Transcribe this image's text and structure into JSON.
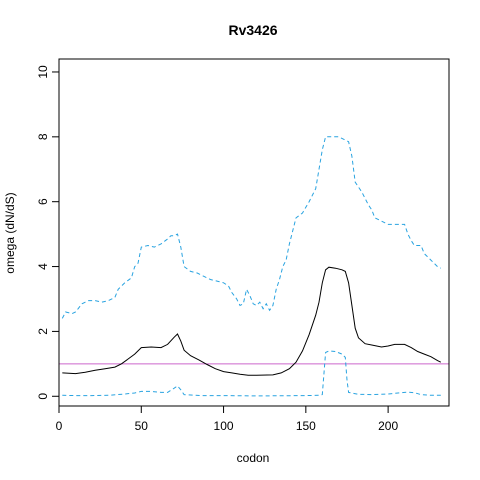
{
  "chart_data": {
    "type": "line",
    "title": "Rv3426",
    "xlabel": "codon",
    "ylabel": "omega (dN/dS)",
    "xlim": [
      0,
      237
    ],
    "ylim": [
      -0.3,
      10.4
    ],
    "xticks": [
      0,
      50,
      100,
      150,
      200
    ],
    "yticks": [
      0,
      2,
      4,
      6,
      8,
      10
    ],
    "xtick_labels": [
      "0",
      "50",
      "100",
      "150",
      "200"
    ],
    "ytick_labels": [
      "0",
      "2",
      "4",
      "6",
      "8",
      "10"
    ],
    "reference_line": {
      "y": 1,
      "color": "#cc66cc"
    },
    "series": [
      {
        "style": "upper",
        "color": "#29a3e0",
        "dash": "dashed",
        "points": [
          [
            2,
            2.4
          ],
          [
            4,
            2.6
          ],
          [
            8,
            2.55
          ],
          [
            10,
            2.6
          ],
          [
            14,
            2.85
          ],
          [
            18,
            2.95
          ],
          [
            22,
            2.95
          ],
          [
            26,
            2.9
          ],
          [
            30,
            2.95
          ],
          [
            34,
            3.05
          ],
          [
            36,
            3.3
          ],
          [
            40,
            3.5
          ],
          [
            44,
            3.65
          ],
          [
            46,
            4.0
          ],
          [
            48,
            4.1
          ],
          [
            50,
            4.6
          ],
          [
            54,
            4.65
          ],
          [
            58,
            4.6
          ],
          [
            62,
            4.7
          ],
          [
            66,
            4.85
          ],
          [
            68,
            4.95
          ],
          [
            70,
            4.95
          ],
          [
            72,
            5.0
          ],
          [
            74,
            4.6
          ],
          [
            76,
            4.0
          ],
          [
            80,
            3.85
          ],
          [
            84,
            3.8
          ],
          [
            88,
            3.7
          ],
          [
            92,
            3.6
          ],
          [
            96,
            3.55
          ],
          [
            100,
            3.5
          ],
          [
            103,
            3.4
          ],
          [
            105,
            3.2
          ],
          [
            108,
            3.0
          ],
          [
            110,
            2.8
          ],
          [
            112,
            2.85
          ],
          [
            114,
            3.3
          ],
          [
            116,
            3.1
          ],
          [
            118,
            2.85
          ],
          [
            120,
            2.8
          ],
          [
            122,
            2.9
          ],
          [
            124,
            2.7
          ],
          [
            126,
            2.85
          ],
          [
            128,
            2.65
          ],
          [
            130,
            2.8
          ],
          [
            132,
            3.3
          ],
          [
            134,
            3.6
          ],
          [
            136,
            4.0
          ],
          [
            138,
            4.2
          ],
          [
            140,
            4.7
          ],
          [
            142,
            5.1
          ],
          [
            144,
            5.5
          ],
          [
            148,
            5.65
          ],
          [
            152,
            6.0
          ],
          [
            156,
            6.4
          ],
          [
            158,
            7.0
          ],
          [
            160,
            7.6
          ],
          [
            162,
            8.0
          ],
          [
            170,
            8.0
          ],
          [
            176,
            7.85
          ],
          [
            178,
            7.4
          ],
          [
            180,
            6.6
          ],
          [
            184,
            6.3
          ],
          [
            188,
            5.9
          ],
          [
            190,
            5.75
          ],
          [
            192,
            5.5
          ],
          [
            196,
            5.4
          ],
          [
            200,
            5.3
          ],
          [
            210,
            5.3
          ],
          [
            212,
            5.0
          ],
          [
            214,
            4.8
          ],
          [
            216,
            4.65
          ],
          [
            220,
            4.65
          ],
          [
            222,
            4.4
          ],
          [
            226,
            4.2
          ],
          [
            230,
            4.0
          ],
          [
            232,
            3.95
          ]
        ]
      },
      {
        "style": "mean",
        "color": "#000000",
        "dash": "solid",
        "points": [
          [
            2,
            0.72
          ],
          [
            10,
            0.7
          ],
          [
            16,
            0.74
          ],
          [
            22,
            0.8
          ],
          [
            28,
            0.85
          ],
          [
            34,
            0.9
          ],
          [
            38,
            1.0
          ],
          [
            42,
            1.15
          ],
          [
            46,
            1.3
          ],
          [
            50,
            1.5
          ],
          [
            56,
            1.52
          ],
          [
            62,
            1.5
          ],
          [
            66,
            1.6
          ],
          [
            70,
            1.82
          ],
          [
            72,
            1.92
          ],
          [
            74,
            1.7
          ],
          [
            76,
            1.42
          ],
          [
            80,
            1.25
          ],
          [
            85,
            1.12
          ],
          [
            90,
            0.98
          ],
          [
            95,
            0.85
          ],
          [
            100,
            0.76
          ],
          [
            105,
            0.72
          ],
          [
            110,
            0.68
          ],
          [
            115,
            0.65
          ],
          [
            120,
            0.65
          ],
          [
            130,
            0.66
          ],
          [
            135,
            0.72
          ],
          [
            140,
            0.85
          ],
          [
            144,
            1.05
          ],
          [
            148,
            1.4
          ],
          [
            152,
            1.9
          ],
          [
            156,
            2.5
          ],
          [
            158,
            2.9
          ],
          [
            160,
            3.5
          ],
          [
            162,
            3.9
          ],
          [
            164,
            3.98
          ],
          [
            168,
            3.95
          ],
          [
            172,
            3.9
          ],
          [
            174,
            3.85
          ],
          [
            176,
            3.5
          ],
          [
            178,
            2.8
          ],
          [
            180,
            2.1
          ],
          [
            182,
            1.8
          ],
          [
            186,
            1.62
          ],
          [
            190,
            1.58
          ],
          [
            196,
            1.52
          ],
          [
            200,
            1.55
          ],
          [
            204,
            1.6
          ],
          [
            210,
            1.6
          ],
          [
            214,
            1.5
          ],
          [
            218,
            1.38
          ],
          [
            222,
            1.3
          ],
          [
            226,
            1.22
          ],
          [
            230,
            1.1
          ],
          [
            232,
            1.05
          ]
        ]
      },
      {
        "style": "lower",
        "color": "#29a3e0",
        "dash": "dashed",
        "points": [
          [
            2,
            0.03
          ],
          [
            10,
            0.02
          ],
          [
            20,
            0.02
          ],
          [
            30,
            0.03
          ],
          [
            40,
            0.07
          ],
          [
            46,
            0.1
          ],
          [
            50,
            0.15
          ],
          [
            56,
            0.15
          ],
          [
            62,
            0.12
          ],
          [
            66,
            0.12
          ],
          [
            70,
            0.25
          ],
          [
            72,
            0.32
          ],
          [
            74,
            0.2
          ],
          [
            76,
            0.05
          ],
          [
            86,
            0.02
          ],
          [
            100,
            0.02
          ],
          [
            120,
            0.01
          ],
          [
            150,
            0.02
          ],
          [
            158,
            0.03
          ],
          [
            160,
            0.05
          ],
          [
            162,
            1.35
          ],
          [
            164,
            1.4
          ],
          [
            168,
            1.38
          ],
          [
            172,
            1.3
          ],
          [
            174,
            1.2
          ],
          [
            175,
            0.5
          ],
          [
            176,
            0.12
          ],
          [
            182,
            0.06
          ],
          [
            190,
            0.05
          ],
          [
            200,
            0.07
          ],
          [
            206,
            0.1
          ],
          [
            212,
            0.13
          ],
          [
            216,
            0.11
          ],
          [
            220,
            0.05
          ],
          [
            226,
            0.03
          ],
          [
            232,
            0.03
          ]
        ]
      }
    ]
  }
}
